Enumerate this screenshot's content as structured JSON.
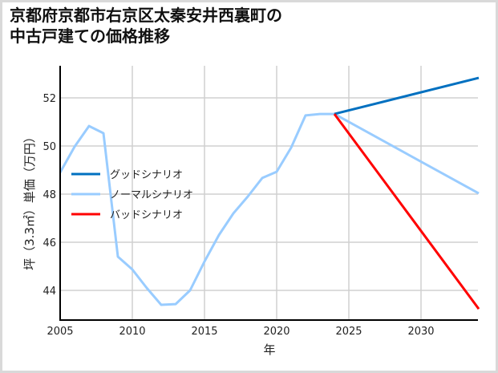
{
  "chart_data": {
    "type": "line",
    "title": "京都府京都市右京区太秦安井西裏町の\n中古戸建ての価格推移",
    "xlabel": "年",
    "ylabel": "坪（3.3㎡）単価（万円）",
    "xlim": [
      2005,
      2034
    ],
    "ylim": [
      42.8,
      53.3
    ],
    "xticks": [
      2005,
      2010,
      2015,
      2020,
      2025,
      2030
    ],
    "yticks": [
      44,
      46,
      48,
      50,
      52
    ],
    "grid": true,
    "legend_position": "center-left",
    "series": [
      {
        "name": "グッドシナリオ",
        "color": "#0070c0",
        "x": [
          2024,
          2034
        ],
        "values": [
          51.33,
          52.83
        ]
      },
      {
        "name": "ノーマルシナリオ",
        "color": "#99ccff",
        "x": [
          2005,
          2006,
          2007,
          2008,
          2009,
          2010,
          2011,
          2012,
          2013,
          2014,
          2015,
          2016,
          2017,
          2018,
          2019,
          2020,
          2021,
          2022,
          2023,
          2024,
          2034
        ],
        "values": [
          48.9,
          49.97,
          50.83,
          50.53,
          45.4,
          44.87,
          44.1,
          43.4,
          43.43,
          44.0,
          45.2,
          46.3,
          47.2,
          47.9,
          48.67,
          48.93,
          49.93,
          51.27,
          51.33,
          51.33,
          48.03
        ]
      },
      {
        "name": "バッドシナリオ",
        "color": "#ff0000",
        "x": [
          2024,
          2034
        ],
        "values": [
          51.33,
          43.23
        ]
      }
    ]
  }
}
